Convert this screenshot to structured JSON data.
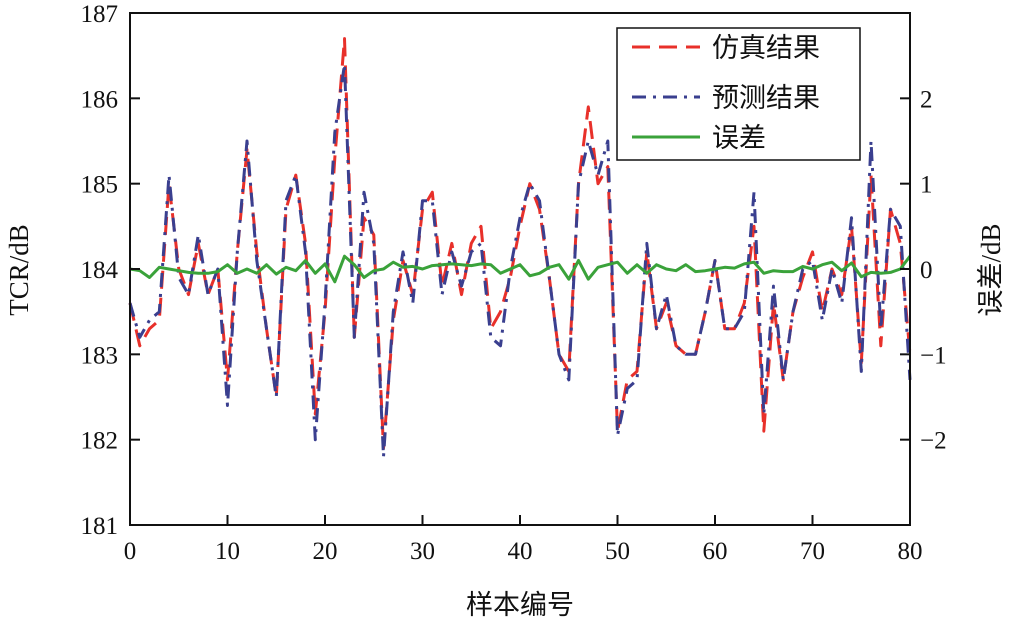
{
  "chart_data": {
    "type": "line",
    "xlabel": "样本编号",
    "ylabel": "TCR/dB",
    "y2label": "误差/dB",
    "xlim": [
      0,
      80
    ],
    "ylim": [
      181,
      187
    ],
    "y2lim": [
      -3,
      3
    ],
    "xticks": [
      "0",
      "10",
      "20",
      "30",
      "40",
      "50",
      "60",
      "70",
      "80"
    ],
    "yticks": [
      "181",
      "182",
      "183",
      "184",
      "185",
      "186",
      "187"
    ],
    "y2ticks": [
      "−2",
      "−1",
      "0",
      "1",
      "2"
    ],
    "grid": false,
    "legend_position": "top-right",
    "x": [
      0,
      1,
      2,
      3,
      4,
      5,
      6,
      7,
      8,
      9,
      10,
      11,
      12,
      13,
      14,
      15,
      16,
      17,
      18,
      19,
      20,
      21,
      22,
      23,
      24,
      25,
      26,
      27,
      28,
      29,
      30,
      31,
      32,
      33,
      34,
      35,
      36,
      37,
      38,
      39,
      40,
      41,
      42,
      43,
      44,
      45,
      46,
      47,
      48,
      49,
      50,
      51,
      52,
      53,
      54,
      55,
      56,
      57,
      58,
      59,
      60,
      61,
      62,
      63,
      64,
      65,
      66,
      67,
      68,
      69,
      70,
      71,
      72,
      73,
      74,
      75,
      76,
      77,
      78,
      79,
      80
    ],
    "series": [
      {
        "name": "仿真结果",
        "axis": "left",
        "color": "#e8302a",
        "style": "dashed",
        "values": [
          183.6,
          183.1,
          183.3,
          183.4,
          185.0,
          184.0,
          183.7,
          184.3,
          183.7,
          184.0,
          182.7,
          184.2,
          185.4,
          184.2,
          183.3,
          182.5,
          184.7,
          185.1,
          184.3,
          182.3,
          183.5,
          185.3,
          186.7,
          183.2,
          184.6,
          184.4,
          181.9,
          183.4,
          184.1,
          183.7,
          184.7,
          184.9,
          183.8,
          184.3,
          183.7,
          184.3,
          184.5,
          183.3,
          183.5,
          183.9,
          184.5,
          185.0,
          184.7,
          183.9,
          183.0,
          182.8,
          185.0,
          185.9,
          185.0,
          185.2,
          182.1,
          182.7,
          182.8,
          184.2,
          183.3,
          183.6,
          183.1,
          183.0,
          183.0,
          183.5,
          184.1,
          183.3,
          183.3,
          183.6,
          184.5,
          182.1,
          183.6,
          182.7,
          183.5,
          183.9,
          184.2,
          183.5,
          184.0,
          183.7,
          184.5,
          182.9,
          185.1,
          183.1,
          184.7,
          184.3,
          183.0
        ]
      },
      {
        "name": "预测结果",
        "axis": "left",
        "color": "#3a3f8f",
        "style": "dashdot",
        "values": [
          183.6,
          183.2,
          183.4,
          183.5,
          185.1,
          183.9,
          183.7,
          184.4,
          183.7,
          184.0,
          182.4,
          184.2,
          185.5,
          184.1,
          183.3,
          182.5,
          184.8,
          185.1,
          184.2,
          182.0,
          183.6,
          185.6,
          186.4,
          183.2,
          184.9,
          184.3,
          181.8,
          183.5,
          184.2,
          183.6,
          184.8,
          184.8,
          183.7,
          184.2,
          183.8,
          184.2,
          184.3,
          183.2,
          183.1,
          184.0,
          184.6,
          185.0,
          184.8,
          183.9,
          183.0,
          182.7,
          185.0,
          185.5,
          185.1,
          185.5,
          182.05,
          182.6,
          182.7,
          184.3,
          183.3,
          183.7,
          183.1,
          183.0,
          183.0,
          183.5,
          184.1,
          183.3,
          183.3,
          183.5,
          184.9,
          182.3,
          183.8,
          182.7,
          183.5,
          184.0,
          184.1,
          183.4,
          184.0,
          183.6,
          184.6,
          182.8,
          185.5,
          183.3,
          184.7,
          184.5,
          182.7
        ]
      },
      {
        "name": "误差",
        "axis": "right",
        "color": "#3aa23a",
        "style": "solid",
        "values": [
          0.0,
          -0.02,
          -0.1,
          0.02,
          0.0,
          -0.02,
          -0.04,
          -0.05,
          -0.05,
          -0.03,
          0.05,
          -0.05,
          0.0,
          -0.05,
          0.05,
          -0.06,
          0.02,
          -0.02,
          0.1,
          -0.05,
          0.06,
          -0.15,
          0.15,
          0.05,
          -0.1,
          -0.02,
          0.0,
          0.08,
          0.02,
          0.03,
          0.0,
          0.04,
          0.05,
          0.06,
          0.05,
          0.04,
          0.06,
          0.05,
          -0.05,
          0.0,
          0.05,
          -0.08,
          -0.05,
          0.02,
          0.05,
          -0.12,
          0.1,
          -0.12,
          0.02,
          0.05,
          0.08,
          -0.05,
          0.05,
          -0.05,
          0.05,
          0.0,
          -0.02,
          0.05,
          -0.03,
          -0.02,
          0.0,
          0.02,
          0.01,
          0.06,
          0.08,
          -0.05,
          -0.02,
          -0.03,
          -0.03,
          0.03,
          0.0,
          0.05,
          0.08,
          -0.02,
          0.07,
          -0.09,
          -0.04,
          -0.05,
          -0.04,
          0.0,
          0.15
        ]
      }
    ]
  }
}
